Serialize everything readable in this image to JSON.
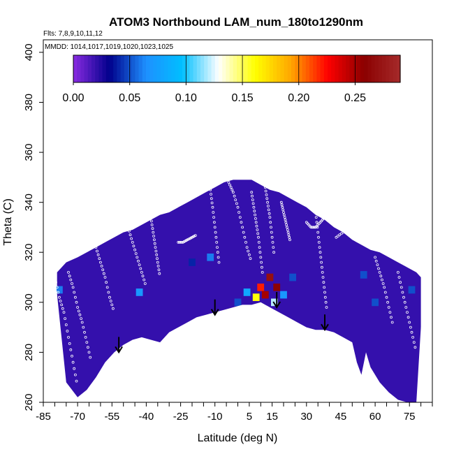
{
  "chart_data": {
    "type": "heatmap",
    "title": "ATOM3 Northbound LAM_num_180to1290nm",
    "subtitle_flights": "Flts: 7,8,9,10,11,12",
    "subtitle_dates": "MMDD: 1014,1017,1019,1020,1023,1025",
    "xlabel": "Latitude (deg N)",
    "ylabel": "Theta (C)",
    "xlim": [
      -85,
      85
    ],
    "ylim": [
      260,
      405
    ],
    "x_ticks": [
      "-85",
      "-70",
      "-55",
      "-40",
      "-25",
      "-10",
      "5",
      "15",
      "30",
      "45",
      "60",
      "75"
    ],
    "y_ticks": [
      "260",
      "280",
      "300",
      "320",
      "340",
      "360",
      "380",
      "400"
    ],
    "colorbar": {
      "range": [
        0,
        0.29
      ],
      "ticks": [
        "0.00",
        "0.05",
        "0.10",
        "0.15",
        "0.20",
        "0.25"
      ],
      "colors": [
        "#8a2be2",
        "#00008b",
        "#1e90ff",
        "#00bfff",
        "#ffffff",
        "#ffff00",
        "#ffa500",
        "#ff0000",
        "#8b0000",
        "#a52a2a"
      ]
    },
    "background_value": 0.02,
    "coverage": {
      "note": "upper theta bound of data coverage by latitude",
      "lat": [
        -79,
        -75,
        -70,
        -66,
        -62,
        -58,
        -54,
        -50,
        -46,
        -42,
        -38,
        -34,
        -30,
        -26,
        -22,
        -18,
        -14,
        -10,
        -6,
        -2,
        2,
        6,
        10,
        14,
        18,
        22,
        26,
        30,
        34,
        38,
        42,
        46,
        50,
        54,
        58,
        62,
        66,
        70,
        74,
        78,
        80
      ],
      "theta_top": [
        312,
        316,
        318,
        320,
        322,
        324,
        326,
        328,
        329,
        331,
        333,
        335,
        336,
        338,
        340,
        342,
        344,
        346,
        348,
        349,
        349,
        349,
        347,
        345,
        344,
        342,
        340,
        338,
        335,
        333,
        330,
        328,
        325,
        323,
        321,
        320,
        318,
        316,
        314,
        312,
        310
      ]
    },
    "floor": {
      "note": "lower theta bound of data coverage (tropopause-like floor)",
      "lat": [
        -80,
        -75,
        -70,
        -66,
        -62,
        -58,
        -54,
        -50,
        -46,
        -42,
        -38,
        -34,
        -30,
        -26,
        -22,
        -18,
        -14,
        -10,
        -6,
        -2,
        2,
        6,
        10,
        14,
        18,
        22,
        26,
        30,
        34,
        38,
        42,
        46,
        50,
        52,
        54,
        56,
        58,
        62,
        66,
        70,
        74,
        78,
        80
      ],
      "theta_bottom": [
        312,
        268,
        262,
        265,
        270,
        276,
        280,
        283,
        285,
        286,
        285,
        284,
        288,
        290,
        292,
        294,
        295,
        296,
        297,
        298,
        299,
        299,
        300,
        298,
        296,
        294,
        292,
        290,
        289,
        289,
        288,
        286,
        284,
        276,
        271,
        280,
        274,
        268,
        264,
        261,
        260,
        260,
        290
      ]
    },
    "hotspots": [
      {
        "lat": 14,
        "theta": 310,
        "value": 0.27
      },
      {
        "lat": 10,
        "theta": 306,
        "value": 0.22
      },
      {
        "lat": 17,
        "theta": 306,
        "value": 0.26
      },
      {
        "lat": 12,
        "theta": 303,
        "value": 0.25
      },
      {
        "lat": 8,
        "theta": 302,
        "value": 0.16
      },
      {
        "lat": 16,
        "theta": 300,
        "value": 0.12
      },
      {
        "lat": 4,
        "theta": 304,
        "value": 0.08
      },
      {
        "lat": 20,
        "theta": 303,
        "value": 0.07
      },
      {
        "lat": -12,
        "theta": 318,
        "value": 0.06
      },
      {
        "lat": -78,
        "theta": 305,
        "value": 0.06
      },
      {
        "lat": -43,
        "theta": 304,
        "value": 0.07
      },
      {
        "lat": 0,
        "theta": 300,
        "value": 0.05
      },
      {
        "lat": 24,
        "theta": 310,
        "value": 0.05
      },
      {
        "lat": 60,
        "theta": 300,
        "value": 0.05
      },
      {
        "lat": 55,
        "theta": 311,
        "value": 0.05
      },
      {
        "lat": -20,
        "theta": 316,
        "value": 0.04
      },
      {
        "lat": 76,
        "theta": 305,
        "value": 0.05
      }
    ],
    "arrows": [
      {
        "lat": -52,
        "theta_tip": 280
      },
      {
        "lat": -10,
        "theta_tip": 295
      },
      {
        "lat": 17,
        "theta_tip": 298
      },
      {
        "lat": 38,
        "theta_tip": 289
      }
    ],
    "flight_tracks": [
      {
        "lat": [
          -80,
          -78,
          -76,
          -74,
          -72,
          -70
        ],
        "theta": [
          310,
          302,
          296,
          286,
          276,
          266
        ]
      },
      {
        "lat": [
          -74,
          -72,
          -70,
          -68,
          -66,
          -64
        ],
        "theta": [
          312,
          306,
          298,
          292,
          284,
          276
        ]
      },
      {
        "lat": [
          -62,
          -60,
          -58,
          -56,
          -54
        ],
        "theta": [
          322,
          316,
          310,
          302,
          296
        ]
      },
      {
        "lat": [
          -48,
          -46,
          -44,
          -42,
          -40
        ],
        "theta": [
          330,
          324,
          318,
          312,
          306
        ]
      },
      {
        "lat": [
          -38,
          -37,
          -36,
          -35,
          -34
        ],
        "theta": [
          334,
          328,
          322,
          316,
          310
        ]
      },
      {
        "lat": [
          -26,
          -24,
          -22,
          -20,
          -18
        ],
        "theta": [
          324,
          324,
          325,
          326,
          327
        ]
      },
      {
        "lat": [
          -12,
          -11,
          -10,
          -9,
          -8
        ],
        "theta": [
          345,
          338,
          330,
          322,
          314
        ]
      },
      {
        "lat": [
          -4,
          -2,
          0,
          2,
          4,
          6
        ],
        "theta": [
          348,
          344,
          338,
          330,
          322,
          316
        ]
      },
      {
        "lat": [
          6,
          7,
          8,
          9,
          10,
          11
        ],
        "theta": [
          344,
          338,
          332,
          326,
          318,
          310
        ]
      },
      {
        "lat": [
          12,
          13,
          14,
          15,
          16
        ],
        "theta": [
          346,
          340,
          334,
          326,
          318
        ]
      },
      {
        "lat": [
          19,
          20,
          21,
          22,
          23
        ],
        "theta": [
          340,
          336,
          332,
          328,
          324
        ]
      },
      {
        "lat": [
          30,
          32,
          34,
          36,
          38
        ],
        "theta": [
          332,
          330,
          330,
          332,
          334
        ]
      },
      {
        "lat": [
          34,
          35,
          36,
          37,
          38,
          39
        ],
        "theta": [
          336,
          328,
          320,
          312,
          304,
          296
        ]
      },
      {
        "lat": [
          43,
          46,
          49,
          52,
          55
        ],
        "theta": [
          326,
          328,
          330,
          332,
          332
        ]
      },
      {
        "lat": [
          60,
          62,
          64,
          66,
          68
        ],
        "theta": [
          318,
          312,
          306,
          298,
          290
        ]
      },
      {
        "lat": [
          70,
          72,
          74,
          76,
          78
        ],
        "theta": [
          312,
          304,
          296,
          288,
          280
        ]
      }
    ]
  }
}
